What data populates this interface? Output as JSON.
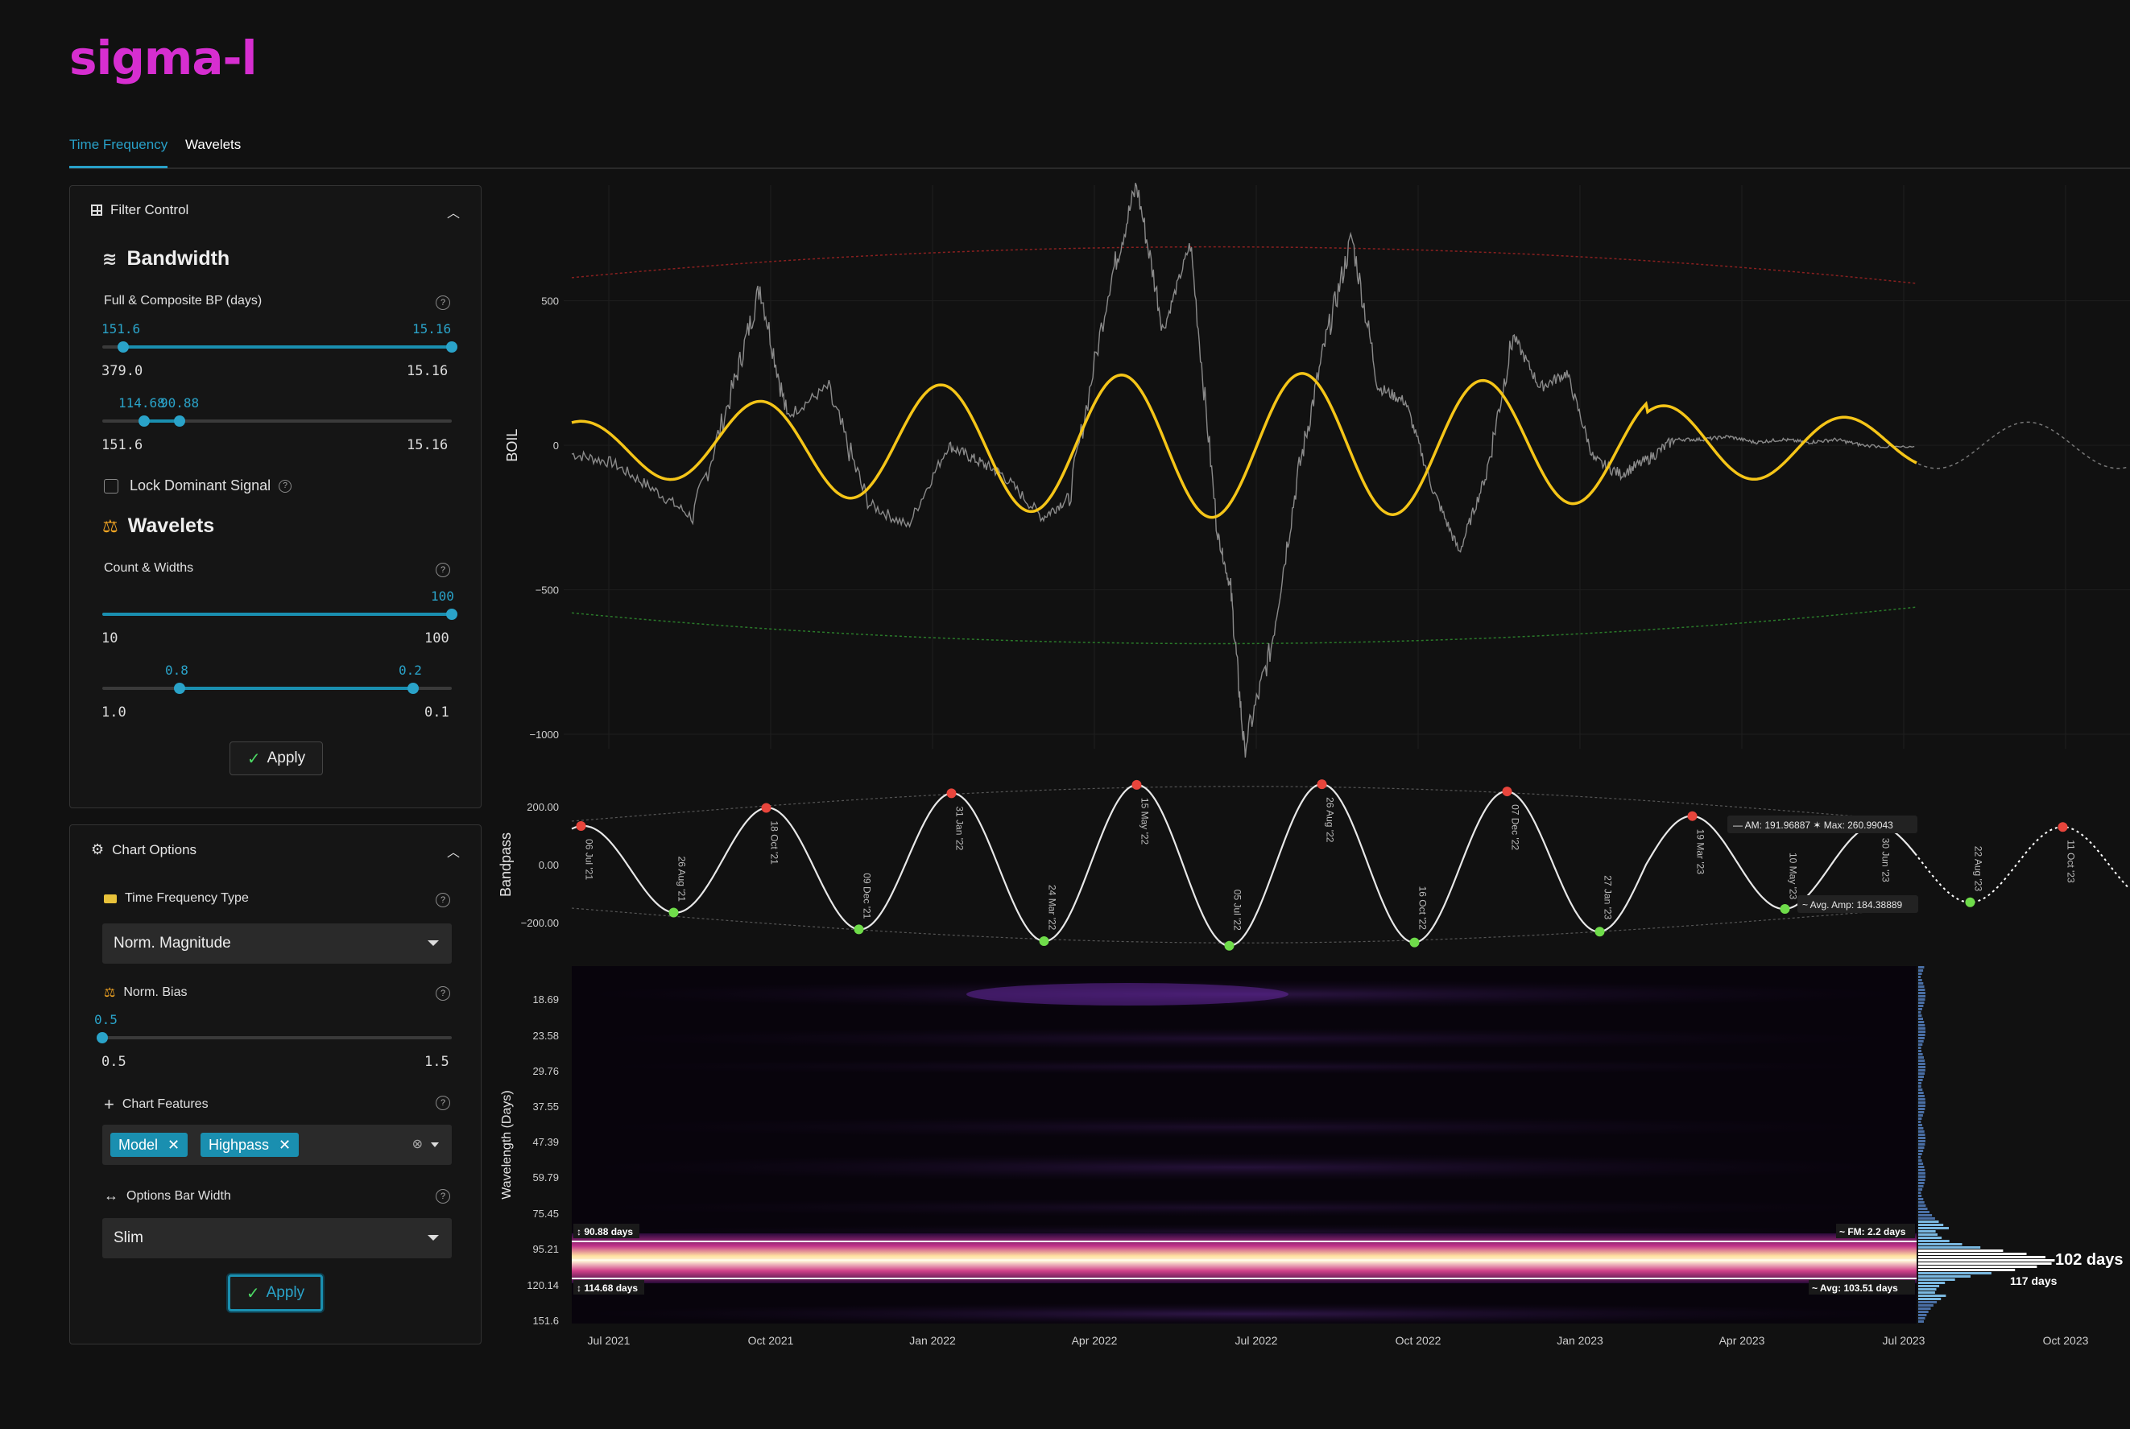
{
  "app": {
    "logo": "sigma-l"
  },
  "tabs": [
    {
      "label": "Time Frequency",
      "active": true
    },
    {
      "label": "Wavelets",
      "active": false
    }
  ],
  "filter_control": {
    "title": "Filter Control",
    "bandwidth": {
      "title": "Bandwidth",
      "label": "Full & Composite BP (days)",
      "slider1": {
        "low_value": "151.6",
        "high_value": "15.16",
        "min": "379.0",
        "max": "15.16"
      },
      "slider2": {
        "low_value": "114.68",
        "high_value": "90.88",
        "min": "151.6",
        "max": "15.16"
      }
    },
    "lock_label": "Lock Dominant Signal",
    "wavelets": {
      "title": "Wavelets",
      "label": "Count & Widths",
      "slider1": {
        "value": "100",
        "min": "10",
        "max": "100"
      },
      "slider2": {
        "low_value": "0.8",
        "high_value": "0.2",
        "min": "1.0",
        "max": "0.1"
      }
    },
    "apply_label": "Apply"
  },
  "chart_options": {
    "title": "Chart Options",
    "tf_type_label": "Time Frequency Type",
    "tf_type_value": "Norm. Magnitude",
    "bias_label": "Norm. Bias",
    "bias_value": "0.5",
    "bias_min": "0.5",
    "bias_max": "1.5",
    "features_label": "Chart Features",
    "features": [
      "Model",
      "Highpass"
    ],
    "bar_width_label": "Options Bar Width",
    "bar_width_value": "Slim",
    "apply_label": "Apply"
  },
  "colors": {
    "accent": "#1a8fb0",
    "logo": "#d62ed0",
    "wave": "#f5c518",
    "peak": "#e8453c",
    "trough": "#6fdc4a"
  },
  "chart_data": [
    {
      "type": "line",
      "ylabel": "BOIL",
      "yticks": [
        "500",
        "0",
        "−500",
        "−1000"
      ],
      "ylim": [
        -1050,
        900
      ],
      "x_range": [
        "2021-06-01",
        "2023-11-01"
      ],
      "series": [
        {
          "values_desc": "price-like grey series",
          "points": [
            [
              0,
              -30
            ],
            [
              0.03,
              -60
            ],
            [
              0.06,
              -150
            ],
            [
              0.09,
              -250
            ],
            [
              0.12,
              200
            ],
            [
              0.14,
              550
            ],
            [
              0.16,
              100
            ],
            [
              0.19,
              200
            ],
            [
              0.22,
              -200
            ],
            [
              0.25,
              -280
            ],
            [
              0.28,
              0
            ],
            [
              0.3,
              -50
            ],
            [
              0.32,
              -100
            ],
            [
              0.35,
              -250
            ],
            [
              0.37,
              -180
            ],
            [
              0.4,
              560
            ],
            [
              0.42,
              900
            ],
            [
              0.44,
              400
            ],
            [
              0.46,
              700
            ],
            [
              0.48,
              -300
            ],
            [
              0.49,
              -500
            ],
            [
              0.5,
              -1050
            ],
            [
              0.52,
              -700
            ],
            [
              0.54,
              -100
            ],
            [
              0.56,
              350
            ],
            [
              0.58,
              720
            ],
            [
              0.6,
              200
            ],
            [
              0.62,
              150
            ],
            [
              0.64,
              -150
            ],
            [
              0.66,
              -370
            ],
            [
              0.68,
              -100
            ],
            [
              0.7,
              380
            ],
            [
              0.72,
              200
            ],
            [
              0.74,
              250
            ],
            [
              0.76,
              -50
            ],
            [
              0.78,
              -100
            ],
            [
              0.8,
              -50
            ],
            [
              0.82,
              20
            ],
            [
              0.84,
              20
            ],
            [
              0.86,
              30
            ],
            [
              0.88,
              10
            ],
            [
              0.9,
              20
            ],
            [
              0.92,
              10
            ],
            [
              0.94,
              20
            ],
            [
              0.96,
              0
            ],
            [
              1.0,
              -10
            ]
          ]
        },
        {
          "name": "model",
          "values_desc": "yellow sinusoid",
          "amp_env": [
            80,
            250,
            80
          ]
        },
        {
          "name": "upper envelope",
          "start": 580,
          "peak": 750,
          "end": 560
        },
        {
          "name": "lower envelope",
          "start": -580,
          "trough": -750,
          "end": -560
        }
      ]
    },
    {
      "type": "line",
      "ylabel": "Bandpass",
      "yticks": [
        "200.00",
        "0.00",
        "−200.00"
      ],
      "annotations": [
        "AM: 191.96887",
        "Max: 260.99043",
        "Avg. Amp: 184.38889"
      ],
      "cycle_labels": [
        "06 Jul '21",
        "26 Aug '21",
        "18 Oct '21",
        "09 Dec '21",
        "31 Jan '22",
        "24 Mar '22",
        "15 May '22",
        "05 Jul '22",
        "26 Aug '22",
        "16 Oct '22",
        "07 Dec '22",
        "27 Jan '23",
        "19 Mar '23",
        "10 May '23",
        "30 Jun '23",
        "22 Aug '23",
        "11 Oct '23"
      ]
    },
    {
      "type": "heatmap",
      "ylabel": "Wavelength (Days)",
      "yticks": [
        "18.69",
        "23.58",
        "29.76",
        "37.55",
        "47.39",
        "59.79",
        "75.45",
        "95.21",
        "120.14",
        "151.6"
      ],
      "xticks": [
        "Jul 2021",
        "Oct 2021",
        "Jan 2022",
        "Apr 2022",
        "Jul 2022",
        "Oct 2022",
        "Jan 2023",
        "Apr 2023",
        "Jul 2023",
        "Oct 2023"
      ],
      "band_labels": {
        "upper": "90.88 days",
        "lower": "114.68 days",
        "fm": "FM: 2.2 days",
        "avg": "Avg: 103.51 days"
      },
      "histogram_labels": {
        "main": "102 days",
        "secondary": "117 days"
      }
    }
  ]
}
